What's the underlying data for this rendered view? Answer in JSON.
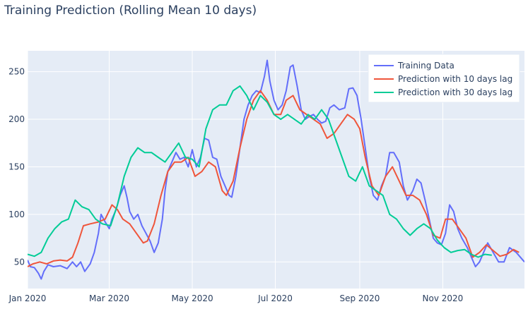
{
  "chart_data": {
    "type": "line",
    "title": "Training Prediction (Rolling Mean 10 days)",
    "xlabel": "",
    "ylabel": "",
    "x_range": [
      "2020-01-01",
      "2020-12-31"
    ],
    "ylim": [
      22,
      272
    ],
    "x_ticks": [
      {
        "date": "2020-01-01",
        "label": "Jan 2020"
      },
      {
        "date": "2020-03-01",
        "label": "Mar 2020"
      },
      {
        "date": "2020-05-01",
        "label": "May 2020"
      },
      {
        "date": "2020-07-01",
        "label": "Jul 2020"
      },
      {
        "date": "2020-09-01",
        "label": "Sep 2020"
      },
      {
        "date": "2020-11-01",
        "label": "Nov 2020"
      }
    ],
    "y_ticks": [
      50,
      100,
      150,
      200,
      250
    ],
    "grid": true,
    "legend_position": "top-right",
    "plot_background": "#e5ecf6",
    "series": [
      {
        "name": "Training Data",
        "color": "#636efa",
        "points": [
          [
            "2020-01-01",
            52
          ],
          [
            "2020-01-03",
            45
          ],
          [
            "2020-01-06",
            44
          ],
          [
            "2020-01-09",
            38
          ],
          [
            "2020-01-11",
            32
          ],
          [
            "2020-01-13",
            40
          ],
          [
            "2020-01-16",
            47
          ],
          [
            "2020-01-20",
            45
          ],
          [
            "2020-01-25",
            46
          ],
          [
            "2020-01-30",
            43
          ],
          [
            "2020-02-03",
            50
          ],
          [
            "2020-02-06",
            45
          ],
          [
            "2020-02-09",
            50
          ],
          [
            "2020-02-12",
            40
          ],
          [
            "2020-02-16",
            48
          ],
          [
            "2020-02-19",
            60
          ],
          [
            "2020-02-22",
            80
          ],
          [
            "2020-02-24",
            100
          ],
          [
            "2020-02-27",
            92
          ],
          [
            "2020-03-01",
            85
          ],
          [
            "2020-03-03",
            95
          ],
          [
            "2020-03-06",
            105
          ],
          [
            "2020-03-09",
            120
          ],
          [
            "2020-03-12",
            130
          ],
          [
            "2020-03-14",
            118
          ],
          [
            "2020-03-16",
            103
          ],
          [
            "2020-03-19",
            95
          ],
          [
            "2020-03-22",
            100
          ],
          [
            "2020-03-25",
            88
          ],
          [
            "2020-03-28",
            80
          ],
          [
            "2020-03-31",
            72
          ],
          [
            "2020-04-03",
            60
          ],
          [
            "2020-04-06",
            70
          ],
          [
            "2020-04-09",
            95
          ],
          [
            "2020-04-11",
            125
          ],
          [
            "2020-04-13",
            145
          ],
          [
            "2020-04-16",
            155
          ],
          [
            "2020-04-19",
            165
          ],
          [
            "2020-04-22",
            158
          ],
          [
            "2020-04-25",
            160
          ],
          [
            "2020-04-28",
            150
          ],
          [
            "2020-05-01",
            168
          ],
          [
            "2020-05-04",
            150
          ],
          [
            "2020-05-07",
            160
          ],
          [
            "2020-05-10",
            180
          ],
          [
            "2020-05-13",
            178
          ],
          [
            "2020-05-16",
            160
          ],
          [
            "2020-05-19",
            158
          ],
          [
            "2020-05-22",
            140
          ],
          [
            "2020-05-25",
            130
          ],
          [
            "2020-05-28",
            120
          ],
          [
            "2020-05-30",
            118
          ],
          [
            "2020-06-02",
            140
          ],
          [
            "2020-06-05",
            170
          ],
          [
            "2020-06-08",
            200
          ],
          [
            "2020-06-11",
            215
          ],
          [
            "2020-06-14",
            225
          ],
          [
            "2020-06-17",
            230
          ],
          [
            "2020-06-20",
            228
          ],
          [
            "2020-06-23",
            245
          ],
          [
            "2020-06-25",
            262
          ],
          [
            "2020-06-27",
            240
          ],
          [
            "2020-06-30",
            220
          ],
          [
            "2020-07-03",
            210
          ],
          [
            "2020-07-06",
            215
          ],
          [
            "2020-07-09",
            230
          ],
          [
            "2020-07-12",
            255
          ],
          [
            "2020-07-14",
            257
          ],
          [
            "2020-07-17",
            235
          ],
          [
            "2020-07-20",
            210
          ],
          [
            "2020-07-23",
            200
          ],
          [
            "2020-07-26",
            203
          ],
          [
            "2020-07-29",
            205
          ],
          [
            "2020-08-01",
            200
          ],
          [
            "2020-08-04",
            196
          ],
          [
            "2020-08-07",
            198
          ],
          [
            "2020-08-10",
            212
          ],
          [
            "2020-08-13",
            215
          ],
          [
            "2020-08-17",
            210
          ],
          [
            "2020-08-21",
            212
          ],
          [
            "2020-08-24",
            232
          ],
          [
            "2020-08-27",
            233
          ],
          [
            "2020-08-30",
            225
          ],
          [
            "2020-09-02",
            200
          ],
          [
            "2020-09-05",
            170
          ],
          [
            "2020-09-08",
            140
          ],
          [
            "2020-09-11",
            120
          ],
          [
            "2020-09-14",
            115
          ],
          [
            "2020-09-17",
            130
          ],
          [
            "2020-09-20",
            140
          ],
          [
            "2020-09-23",
            165
          ],
          [
            "2020-09-26",
            165
          ],
          [
            "2020-09-30",
            155
          ],
          [
            "2020-10-03",
            130
          ],
          [
            "2020-10-06",
            115
          ],
          [
            "2020-10-10",
            125
          ],
          [
            "2020-10-13",
            137
          ],
          [
            "2020-10-16",
            133
          ],
          [
            "2020-10-19",
            115
          ],
          [
            "2020-10-22",
            95
          ],
          [
            "2020-10-25",
            75
          ],
          [
            "2020-10-28",
            70
          ],
          [
            "2020-10-31",
            68
          ],
          [
            "2020-11-03",
            80
          ],
          [
            "2020-11-06",
            110
          ],
          [
            "2020-11-09",
            103
          ],
          [
            "2020-11-12",
            85
          ],
          [
            "2020-11-15",
            75
          ],
          [
            "2020-11-19",
            65
          ],
          [
            "2020-11-22",
            55
          ],
          [
            "2020-11-25",
            45
          ],
          [
            "2020-11-28",
            50
          ],
          [
            "2020-12-01",
            60
          ],
          [
            "2020-12-04",
            70
          ],
          [
            "2020-12-08",
            60
          ],
          [
            "2020-12-12",
            50
          ],
          [
            "2020-12-16",
            50
          ],
          [
            "2020-12-20",
            65
          ],
          [
            "2020-12-25",
            60
          ],
          [
            "2020-12-31",
            50
          ]
        ]
      },
      {
        "name": "Prediction with 10 days lag",
        "color": "#ef553b",
        "points": [
          [
            "2020-01-01",
            45
          ],
          [
            "2020-01-05",
            48
          ],
          [
            "2020-01-10",
            50
          ],
          [
            "2020-01-15",
            48
          ],
          [
            "2020-01-20",
            51
          ],
          [
            "2020-01-25",
            52
          ],
          [
            "2020-01-30",
            51
          ],
          [
            "2020-02-03",
            55
          ],
          [
            "2020-02-07",
            70
          ],
          [
            "2020-02-11",
            88
          ],
          [
            "2020-02-16",
            90
          ],
          [
            "2020-02-22",
            92
          ],
          [
            "2020-02-27",
            95
          ],
          [
            "2020-03-03",
            110
          ],
          [
            "2020-03-07",
            105
          ],
          [
            "2020-03-11",
            95
          ],
          [
            "2020-03-16",
            90
          ],
          [
            "2020-03-21",
            80
          ],
          [
            "2020-03-26",
            70
          ],
          [
            "2020-03-29",
            72
          ],
          [
            "2020-04-03",
            90
          ],
          [
            "2020-04-08",
            120
          ],
          [
            "2020-04-13",
            145
          ],
          [
            "2020-04-18",
            155
          ],
          [
            "2020-04-23",
            155
          ],
          [
            "2020-04-28",
            160
          ],
          [
            "2020-05-03",
            140
          ],
          [
            "2020-05-08",
            145
          ],
          [
            "2020-05-13",
            155
          ],
          [
            "2020-05-18",
            150
          ],
          [
            "2020-05-23",
            125
          ],
          [
            "2020-05-26",
            120
          ],
          [
            "2020-05-31",
            135
          ],
          [
            "2020-06-05",
            170
          ],
          [
            "2020-06-10",
            200
          ],
          [
            "2020-06-15",
            220
          ],
          [
            "2020-06-20",
            230
          ],
          [
            "2020-06-25",
            220
          ],
          [
            "2020-06-30",
            205
          ],
          [
            "2020-07-05",
            205
          ],
          [
            "2020-07-09",
            220
          ],
          [
            "2020-07-14",
            225
          ],
          [
            "2020-07-19",
            210
          ],
          [
            "2020-07-24",
            205
          ],
          [
            "2020-07-29",
            200
          ],
          [
            "2020-08-03",
            195
          ],
          [
            "2020-08-08",
            180
          ],
          [
            "2020-08-13",
            185
          ],
          [
            "2020-08-18",
            195
          ],
          [
            "2020-08-23",
            205
          ],
          [
            "2020-08-28",
            200
          ],
          [
            "2020-09-01",
            190
          ],
          [
            "2020-09-05",
            160
          ],
          [
            "2020-09-10",
            130
          ],
          [
            "2020-09-15",
            120
          ],
          [
            "2020-09-20",
            140
          ],
          [
            "2020-09-25",
            150
          ],
          [
            "2020-09-30",
            135
          ],
          [
            "2020-10-05",
            120
          ],
          [
            "2020-10-10",
            120
          ],
          [
            "2020-10-15",
            115
          ],
          [
            "2020-10-20",
            100
          ],
          [
            "2020-10-25",
            78
          ],
          [
            "2020-10-30",
            75
          ],
          [
            "2020-11-03",
            95
          ],
          [
            "2020-11-08",
            95
          ],
          [
            "2020-11-13",
            85
          ],
          [
            "2020-11-18",
            75
          ],
          [
            "2020-11-23",
            55
          ],
          [
            "2020-11-28",
            60
          ],
          [
            "2020-12-03",
            68
          ],
          [
            "2020-12-08",
            62
          ],
          [
            "2020-12-13",
            56
          ],
          [
            "2020-12-18",
            58
          ],
          [
            "2020-12-23",
            63
          ],
          [
            "2020-12-27",
            60
          ]
        ]
      },
      {
        "name": "Prediction with 30 days lag",
        "color": "#00cc96",
        "points": [
          [
            "2020-01-01",
            58
          ],
          [
            "2020-01-06",
            56
          ],
          [
            "2020-01-11",
            60
          ],
          [
            "2020-01-16",
            75
          ],
          [
            "2020-01-21",
            85
          ],
          [
            "2020-01-26",
            92
          ],
          [
            "2020-01-31",
            95
          ],
          [
            "2020-02-05",
            115
          ],
          [
            "2020-02-10",
            108
          ],
          [
            "2020-02-15",
            105
          ],
          [
            "2020-02-20",
            95
          ],
          [
            "2020-02-25",
            90
          ],
          [
            "2020-03-02",
            88
          ],
          [
            "2020-03-07",
            110
          ],
          [
            "2020-03-12",
            140
          ],
          [
            "2020-03-17",
            160
          ],
          [
            "2020-03-22",
            170
          ],
          [
            "2020-03-27",
            165
          ],
          [
            "2020-04-01",
            165
          ],
          [
            "2020-04-06",
            160
          ],
          [
            "2020-04-11",
            155
          ],
          [
            "2020-04-16",
            165
          ],
          [
            "2020-04-21",
            175
          ],
          [
            "2020-04-26",
            160
          ],
          [
            "2020-05-01",
            158
          ],
          [
            "2020-05-06",
            150
          ],
          [
            "2020-05-11",
            190
          ],
          [
            "2020-05-16",
            210
          ],
          [
            "2020-05-21",
            215
          ],
          [
            "2020-05-26",
            215
          ],
          [
            "2020-05-31",
            230
          ],
          [
            "2020-06-05",
            235
          ],
          [
            "2020-06-10",
            225
          ],
          [
            "2020-06-15",
            210
          ],
          [
            "2020-06-20",
            225
          ],
          [
            "2020-06-25",
            218
          ],
          [
            "2020-06-30",
            205
          ],
          [
            "2020-07-05",
            200
          ],
          [
            "2020-07-10",
            205
          ],
          [
            "2020-07-15",
            200
          ],
          [
            "2020-07-20",
            195
          ],
          [
            "2020-07-25",
            205
          ],
          [
            "2020-07-30",
            200
          ],
          [
            "2020-08-04",
            210
          ],
          [
            "2020-08-09",
            200
          ],
          [
            "2020-08-14",
            180
          ],
          [
            "2020-08-19",
            160
          ],
          [
            "2020-08-24",
            140
          ],
          [
            "2020-08-29",
            135
          ],
          [
            "2020-09-03",
            150
          ],
          [
            "2020-09-08",
            130
          ],
          [
            "2020-09-13",
            125
          ],
          [
            "2020-09-18",
            120
          ],
          [
            "2020-09-23",
            100
          ],
          [
            "2020-09-28",
            95
          ],
          [
            "2020-10-03",
            85
          ],
          [
            "2020-10-08",
            78
          ],
          [
            "2020-10-13",
            85
          ],
          [
            "2020-10-18",
            90
          ],
          [
            "2020-10-23",
            85
          ],
          [
            "2020-10-28",
            73
          ],
          [
            "2020-11-02",
            65
          ],
          [
            "2020-11-07",
            60
          ],
          [
            "2020-11-12",
            62
          ],
          [
            "2020-11-17",
            63
          ],
          [
            "2020-11-22",
            58
          ],
          [
            "2020-11-27",
            55
          ],
          [
            "2020-12-02",
            58
          ],
          [
            "2020-12-07",
            57
          ]
        ]
      }
    ]
  }
}
